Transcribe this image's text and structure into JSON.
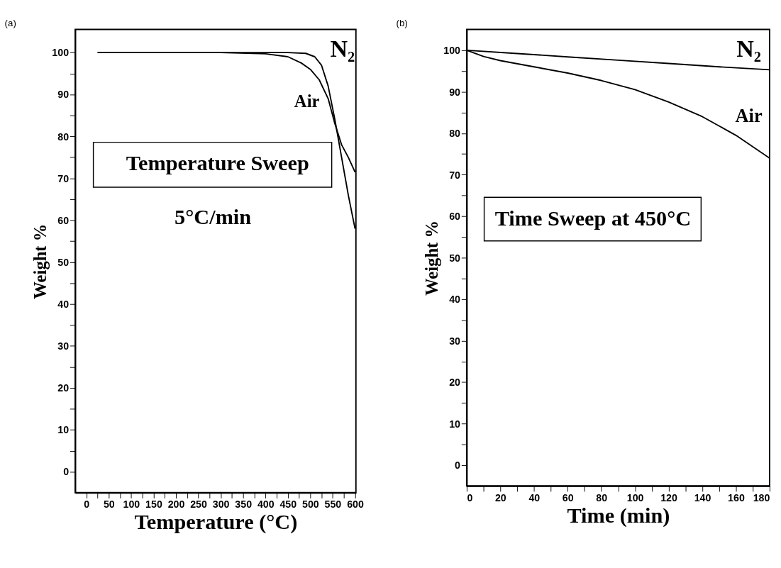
{
  "chart_data": [
    {
      "type": "line",
      "title": "(a)",
      "xlabel": "Temperature (°C)",
      "ylabel": "Weight %",
      "xlim": [
        -25,
        602
      ],
      "ylim": [
        -5,
        105.5
      ],
      "xticks": [
        0,
        {
          "value": 25,
          "label": null
        },
        50,
        {
          "value": 75,
          "label": null
        },
        100,
        {
          "value": 125,
          "label": null
        },
        150,
        {
          "value": 175,
          "label": null
        },
        200,
        {
          "value": 225,
          "label": null
        },
        250,
        {
          "value": 275,
          "label": null
        },
        300,
        {
          "value": 325,
          "label": null
        },
        350,
        {
          "value": 375,
          "label": null
        },
        400,
        {
          "value": 425,
          "label": null
        },
        450,
        {
          "value": 475,
          "label": null
        },
        500,
        {
          "value": 525,
          "label": null
        },
        550,
        {
          "value": 575,
          "label": null
        },
        600
      ],
      "yticks": [
        0,
        {
          "value": 5,
          "label": null
        },
        10,
        {
          "value": 15,
          "label": null
        },
        20,
        {
          "value": 25,
          "label": null
        },
        30,
        {
          "value": 35,
          "label": null
        },
        40,
        {
          "value": 45,
          "label": null
        },
        50,
        {
          "value": 55,
          "label": null
        },
        60,
        {
          "value": 65,
          "label": null
        },
        70,
        {
          "value": 75,
          "label": null
        },
        80,
        {
          "value": 85,
          "label": null
        },
        90,
        {
          "value": 95,
          "label": null
        },
        100
      ],
      "series": [
        {
          "name": "N₂",
          "color": "#000000",
          "x": [
            25,
            300,
            450,
            490,
            510,
            525,
            540,
            555,
            570,
            585,
            600
          ],
          "values": [
            100,
            100,
            100,
            99.8,
            99,
            97,
            92,
            84,
            75,
            66,
            58
          ]
        },
        {
          "name": "Air",
          "color": "#000000",
          "x": [
            25,
            300,
            400,
            450,
            480,
            500,
            520,
            540,
            555,
            570,
            585,
            600
          ],
          "values": [
            100,
            100,
            99.7,
            99,
            97.5,
            96,
            93.5,
            89,
            83,
            78,
            75,
            71.5
          ]
        }
      ],
      "annotations": [
        "Temperature Sweep",
        "5°C/min"
      ],
      "grid": false,
      "legend": false,
      "marker": "none",
      "line_style": "solid"
    },
    {
      "type": "line",
      "title": "(b)",
      "xlabel": "Time (min)",
      "ylabel": "Weight %",
      "xlim": [
        0,
        180
      ],
      "ylim": [
        -5,
        105
      ],
      "xticks": [
        0,
        {
          "value": 10,
          "label": null
        },
        20,
        {
          "value": 30,
          "label": null
        },
        40,
        {
          "value": 50,
          "label": null
        },
        60,
        {
          "value": 70,
          "label": null
        },
        80,
        {
          "value": 90,
          "label": null
        },
        100,
        {
          "value": 110,
          "label": null
        },
        120,
        {
          "value": 130,
          "label": null
        },
        140,
        {
          "value": 150,
          "label": null
        },
        160,
        {
          "value": 170,
          "label": null
        },
        180
      ],
      "yticks": [
        0,
        {
          "value": 5,
          "label": null
        },
        10,
        {
          "value": 15,
          "label": null
        },
        20,
        {
          "value": 25,
          "label": null
        },
        30,
        {
          "value": 35,
          "label": null
        },
        40,
        {
          "value": 45,
          "label": null
        },
        50,
        {
          "value": 55,
          "label": null
        },
        60,
        {
          "value": 65,
          "label": null
        },
        70,
        {
          "value": 75,
          "label": null
        },
        80,
        {
          "value": 85,
          "label": null
        },
        90,
        {
          "value": 95,
          "label": null
        },
        100
      ],
      "series": [
        {
          "name": "N₂",
          "color": "#000000",
          "x": [
            0,
            30,
            60,
            90,
            120,
            150,
            180
          ],
          "values": [
            100,
            99.2,
            98.4,
            97.6,
            96.8,
            96,
            95.3
          ]
        },
        {
          "name": "Air",
          "color": "#000000",
          "x": [
            0,
            10,
            20,
            40,
            60,
            80,
            100,
            120,
            140,
            160,
            180
          ],
          "values": [
            100,
            98.5,
            97.5,
            96,
            94.5,
            92.7,
            90.5,
            87.5,
            84,
            79.5,
            74
          ]
        }
      ],
      "annotations": [
        "Time Sweep at 450°C"
      ],
      "grid": false,
      "legend": false,
      "marker": "none",
      "line_style": "solid"
    }
  ]
}
